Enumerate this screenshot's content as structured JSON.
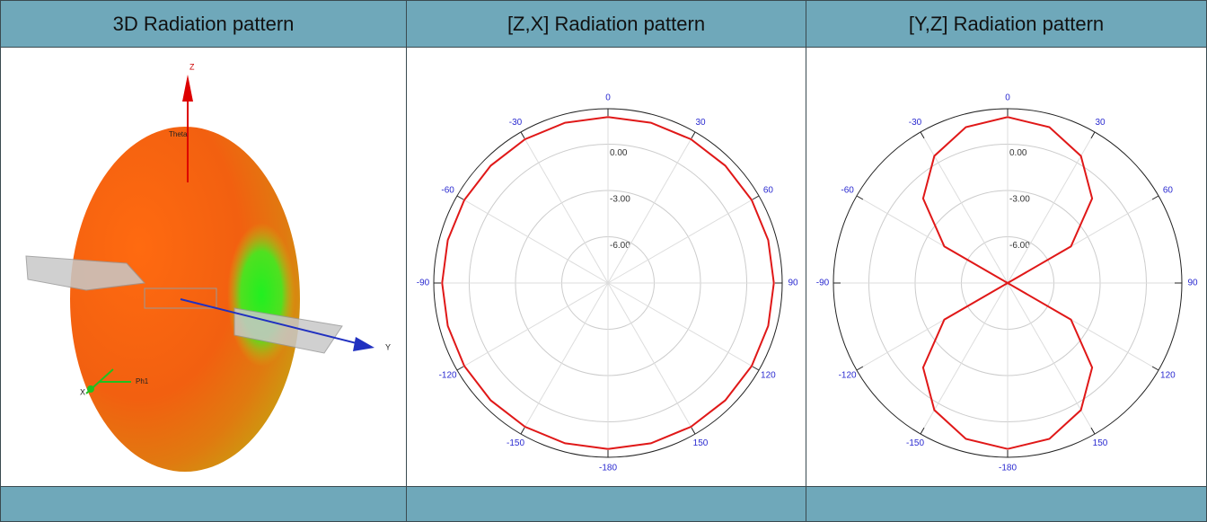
{
  "table": {
    "headers": [
      "3D Radiation pattern",
      "[Z,X] Radiation pattern",
      "[Y,Z] Radiation pattern"
    ]
  },
  "view_3d": {
    "axis_labels": {
      "z": "Z",
      "y": "Y",
      "x": "X"
    },
    "annotations": [
      "Theta",
      "Ph1"
    ]
  },
  "chart_data": [
    {
      "type": "polar",
      "color": "#e01818",
      "theta": [
        -180,
        -165,
        -150,
        -135,
        -120,
        -105,
        -90,
        -75,
        -60,
        -45,
        -30,
        -15,
        0,
        15,
        30,
        45,
        60,
        75,
        90,
        105,
        120,
        135,
        150,
        165,
        180
      ],
      "values": [
        1.76,
        1.76,
        1.76,
        1.76,
        1.76,
        1.76,
        1.76,
        1.76,
        1.76,
        1.76,
        1.76,
        1.76,
        1.76,
        1.76,
        1.76,
        1.76,
        1.76,
        1.76,
        1.76,
        1.76,
        1.76,
        1.76,
        1.76,
        1.76,
        1.76
      ],
      "rlim": [
        -9,
        2.3
      ],
      "rticks": [
        {
          "value": 0,
          "label": "0.00"
        },
        {
          "value": -3,
          "label": "-3.00"
        },
        {
          "value": -6,
          "label": "-6.00"
        }
      ],
      "thetaticks": [
        0,
        30,
        60,
        90,
        120,
        150,
        -180,
        -150,
        -120,
        -90,
        -60,
        -30
      ]
    },
    {
      "type": "polar",
      "color": "#e01818",
      "theta": [
        -180,
        -165,
        -150,
        -135,
        -120,
        -105,
        -90,
        -75,
        -60,
        -45,
        -30,
        -15,
        0,
        15,
        30,
        45,
        60,
        75,
        90,
        105,
        120,
        135,
        150,
        165,
        180
      ],
      "values": [
        1.76,
        1.46,
        0.51,
        -1.25,
        -4.26,
        -9,
        -9,
        -9,
        -4.26,
        -1.25,
        0.51,
        1.46,
        1.76,
        1.46,
        0.51,
        -1.25,
        -4.26,
        -9,
        -9,
        -9,
        -4.26,
        -1.25,
        0.51,
        1.46,
        1.76
      ],
      "rlim": [
        -9,
        2.3
      ],
      "rticks": [
        {
          "value": 0,
          "label": "0.00"
        },
        {
          "value": -3,
          "label": "-3.00"
        },
        {
          "value": -6,
          "label": "-6.00"
        }
      ],
      "thetaticks": [
        0,
        30,
        60,
        90,
        120,
        150,
        -180,
        -150,
        -120,
        -90,
        -60,
        -30
      ]
    }
  ]
}
